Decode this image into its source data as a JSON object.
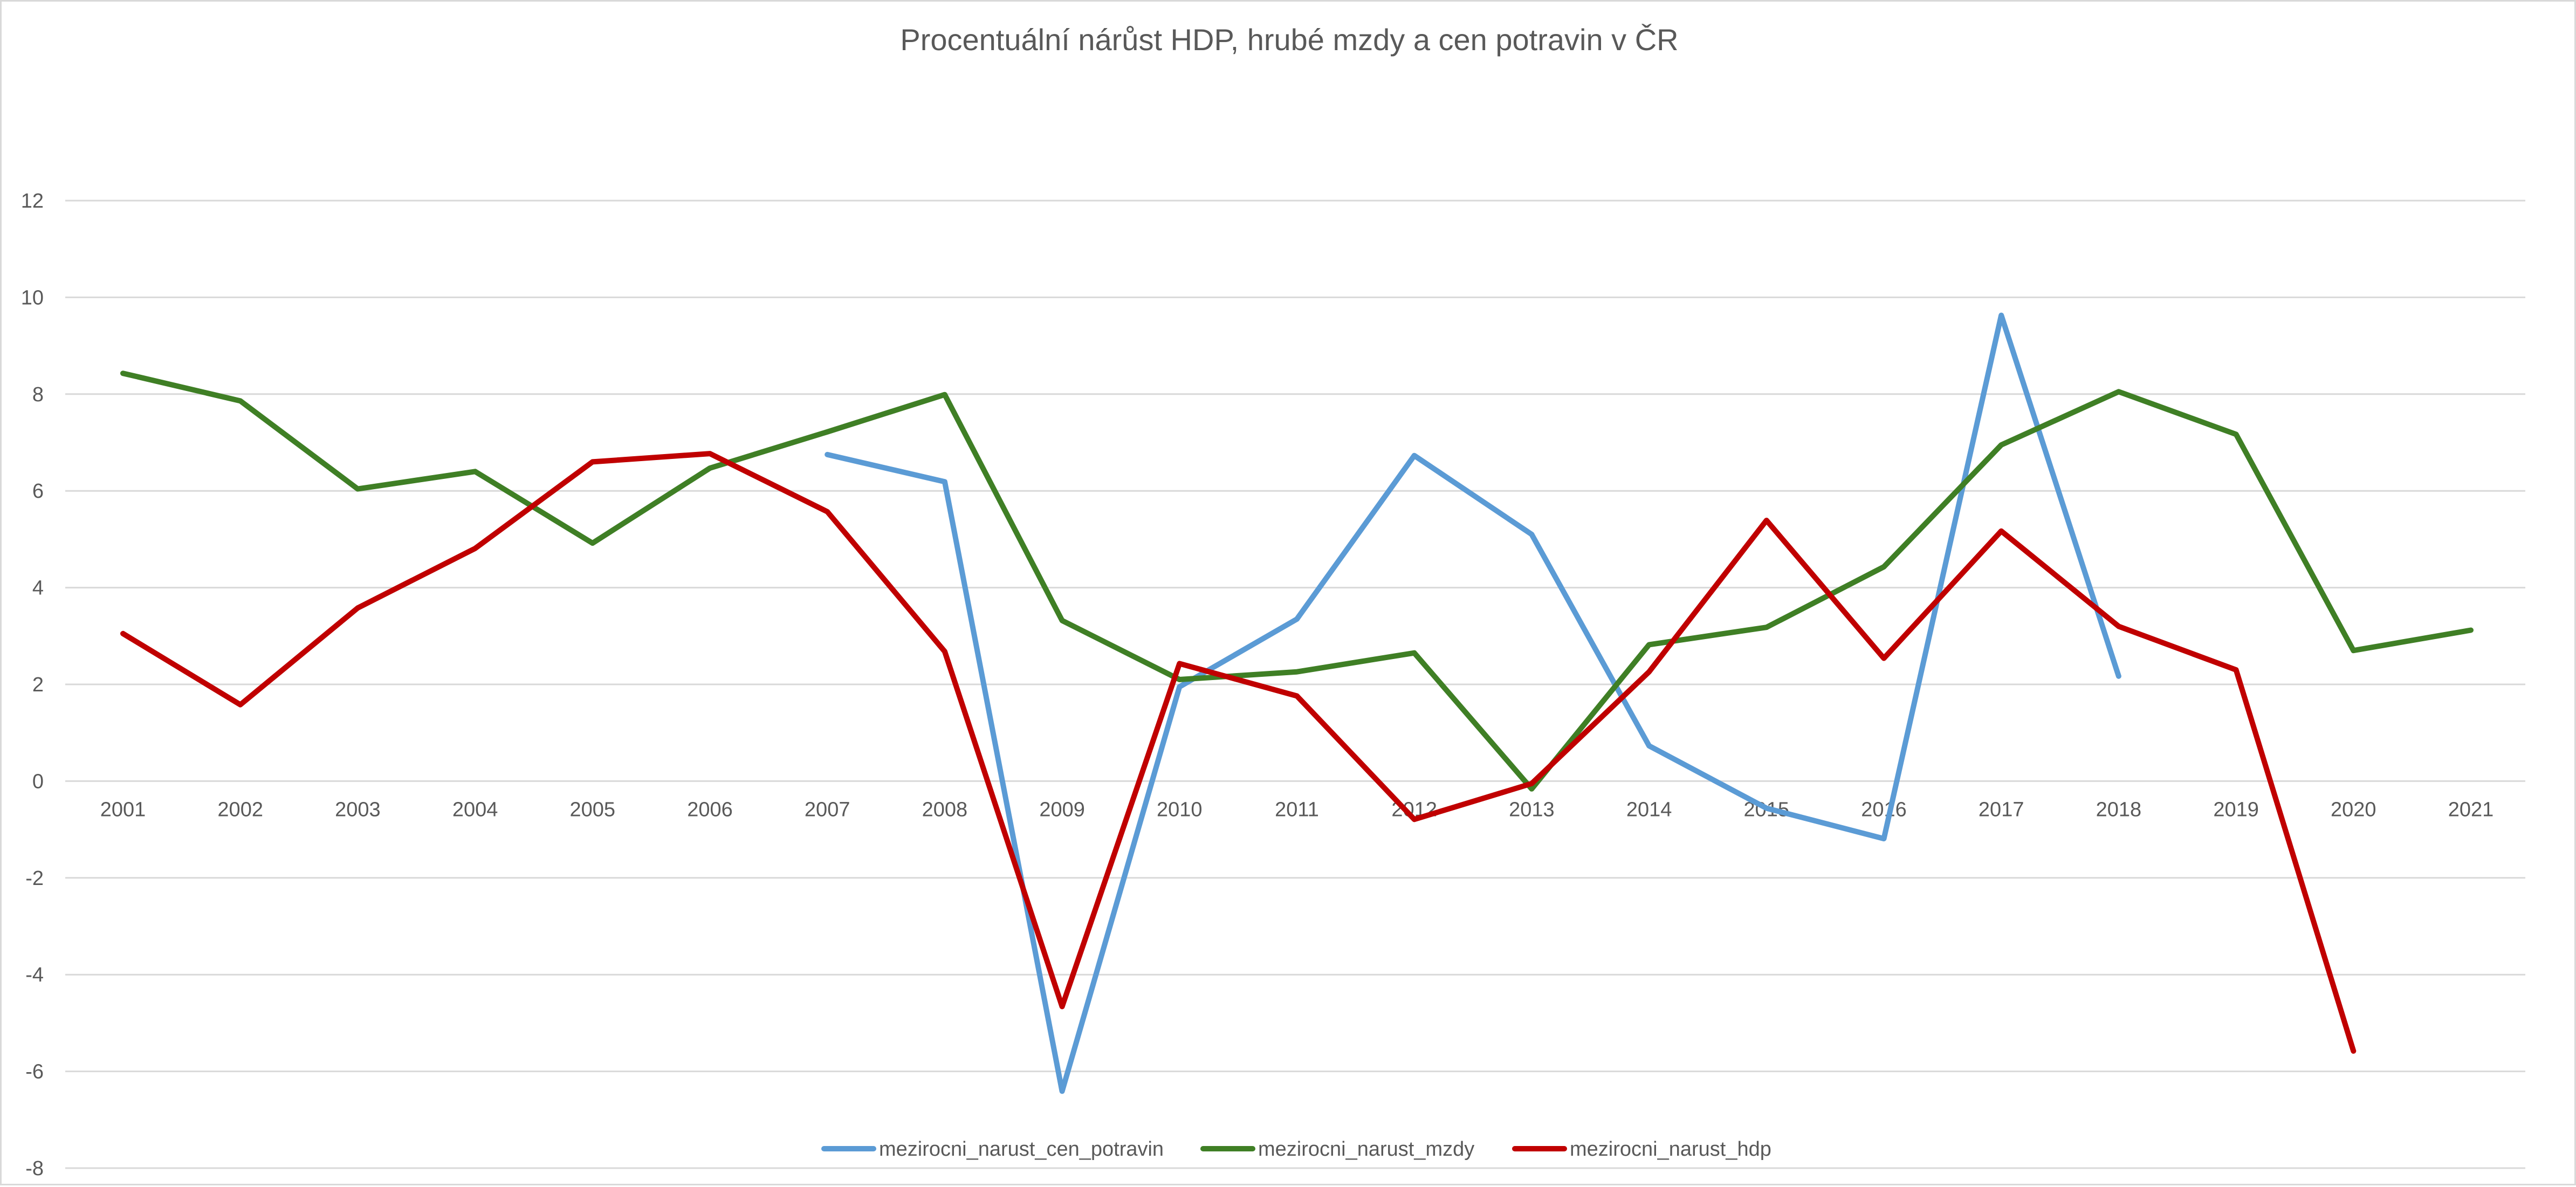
{
  "chart_data": {
    "type": "line",
    "title": "Procentuální nárůst HDP, hrubé mzdy a cen potravin v ČR",
    "xlabel": "",
    "ylabel": "",
    "categories": [
      "2001",
      "2002",
      "2003",
      "2004",
      "2005",
      "2006",
      "2007",
      "2008",
      "2009",
      "2010",
      "2011",
      "2012",
      "2013",
      "2014",
      "2015",
      "2016",
      "2017",
      "2018",
      "2019",
      "2020",
      "2021"
    ],
    "ylim": [
      -8,
      12
    ],
    "yticks": [
      -8,
      -6,
      -4,
      -2,
      0,
      2,
      4,
      6,
      8,
      10,
      12
    ],
    "grid": true,
    "legend_position": "bottom",
    "series": [
      {
        "name": "mezirocni_narust_cen_potravin",
        "color": "#5b9bd5",
        "values": [
          null,
          null,
          null,
          null,
          null,
          null,
          6.75,
          6.19,
          -6.41,
          1.95,
          3.35,
          6.73,
          5.1,
          0.73,
          -0.56,
          -1.19,
          9.63,
          2.17,
          null,
          null,
          null
        ]
      },
      {
        "name": "mezirocni_narust_mzdy",
        "color": "#3f7f25",
        "values": [
          8.43,
          7.86,
          6.04,
          6.4,
          4.92,
          6.47,
          7.22,
          7.99,
          3.32,
          2.1,
          2.26,
          2.65,
          -0.16,
          2.82,
          3.18,
          4.43,
          6.95,
          8.05,
          7.17,
          2.7,
          3.12
        ]
      },
      {
        "name": "mezirocni_narust_hdp",
        "color": "#c00000",
        "values": [
          3.05,
          1.58,
          3.58,
          4.81,
          6.6,
          6.77,
          5.57,
          2.68,
          -4.66,
          2.43,
          1.76,
          -0.79,
          -0.05,
          2.26,
          5.39,
          2.54,
          5.17,
          3.2,
          2.3,
          -5.58,
          null
        ]
      }
    ]
  }
}
